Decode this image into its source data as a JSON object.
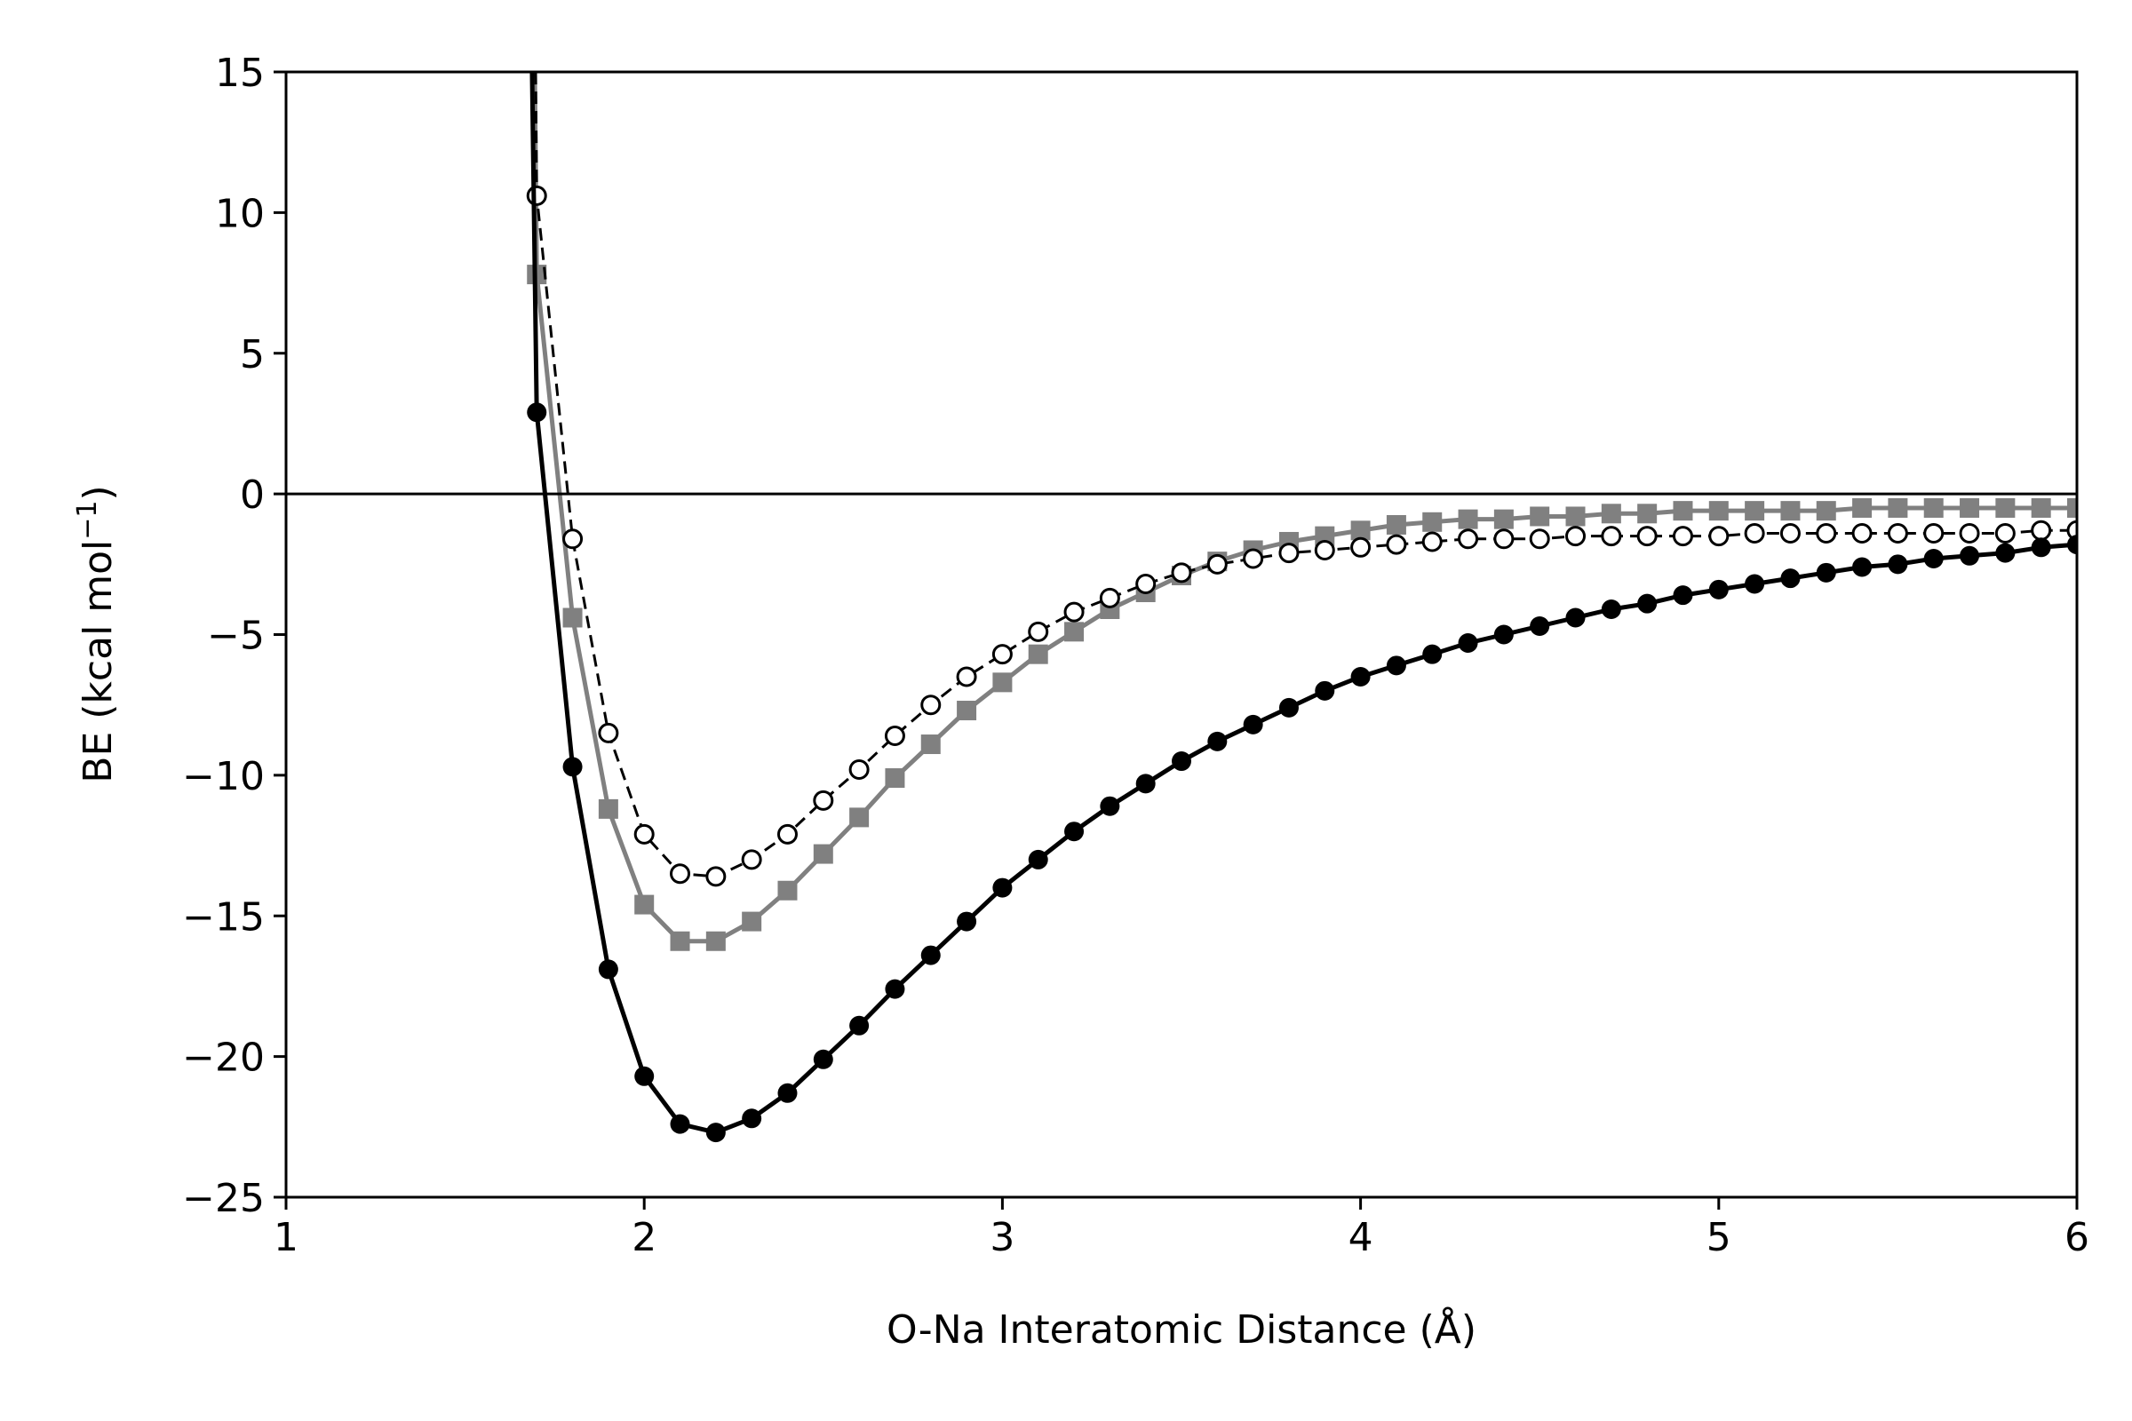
{
  "chart_data": {
    "type": "line",
    "xlabel": "O-Na Interatomic Distance (Å)",
    "ylabel": {
      "prefix": "BE (kcal mol",
      "sup": "−1",
      "suffix": ")"
    },
    "xlim": [
      1,
      6
    ],
    "ylim": [
      -25,
      15
    ],
    "xticks": [
      1,
      2,
      3,
      4,
      5,
      6
    ],
    "xtick_labels": [
      "1",
      "2",
      "3",
      "4",
      "5",
      "6"
    ],
    "yticks": [
      -25,
      -20,
      -15,
      -10,
      -5,
      0,
      5,
      10,
      15
    ],
    "ytick_labels": [
      "−25",
      "−20",
      "−15",
      "−10",
      "−5",
      "0",
      "5",
      "10",
      "15"
    ],
    "reference_line_y": 0,
    "grid": false,
    "legend": "none",
    "series": [
      {
        "style": "black solid line with filled circles",
        "color": "#000000",
        "x": [
          1.7,
          1.8,
          1.9,
          2.0,
          2.1,
          2.2,
          2.3,
          2.4,
          2.5,
          2.6,
          2.7,
          2.8,
          2.9,
          3.0,
          3.1,
          3.2,
          3.3,
          3.4,
          3.5,
          3.6,
          3.7,
          3.8,
          3.9,
          4.0,
          4.1,
          4.2,
          4.3,
          4.4,
          4.5,
          4.6,
          4.7,
          4.8,
          4.9,
          5.0,
          5.1,
          5.2,
          5.3,
          5.4,
          5.5,
          5.6,
          5.7,
          5.8,
          5.9,
          6.0
        ],
        "y": [
          2.9,
          -9.7,
          -16.9,
          -20.7,
          -22.4,
          -22.7,
          -22.2,
          -21.3,
          -20.1,
          -18.9,
          -17.6,
          -16.4,
          -15.2,
          -14.0,
          -13.0,
          -12.0,
          -11.1,
          -10.3,
          -9.5,
          -8.8,
          -8.2,
          -7.6,
          -7.0,
          -6.5,
          -6.1,
          -5.7,
          -5.3,
          -5.0,
          -4.7,
          -4.4,
          -4.1,
          -3.9,
          -3.6,
          -3.4,
          -3.2,
          -3.0,
          -2.8,
          -2.6,
          -2.5,
          -2.3,
          -2.2,
          -2.1,
          -1.9,
          -1.8
        ]
      },
      {
        "style": "grey solid line with filled squares",
        "color": "#808080",
        "x": [
          1.7,
          1.8,
          1.9,
          2.0,
          2.1,
          2.2,
          2.3,
          2.4,
          2.5,
          2.6,
          2.7,
          2.8,
          2.9,
          3.0,
          3.1,
          3.2,
          3.3,
          3.4,
          3.5,
          3.6,
          3.7,
          3.8,
          3.9,
          4.0,
          4.1,
          4.2,
          4.3,
          4.4,
          4.5,
          4.6,
          4.7,
          4.8,
          4.9,
          5.0,
          5.1,
          5.2,
          5.3,
          5.4,
          5.5,
          5.6,
          5.7,
          5.8,
          5.9,
          6.0
        ],
        "y": [
          7.8,
          -4.4,
          -11.2,
          -14.6,
          -15.9,
          -15.9,
          -15.2,
          -14.1,
          -12.8,
          -11.5,
          -10.1,
          -8.9,
          -7.7,
          -6.7,
          -5.7,
          -4.9,
          -4.1,
          -3.5,
          -2.9,
          -2.4,
          -2.0,
          -1.7,
          -1.5,
          -1.3,
          -1.1,
          -1.0,
          -0.9,
          -0.9,
          -0.8,
          -0.8,
          -0.7,
          -0.7,
          -0.6,
          -0.6,
          -0.6,
          -0.6,
          -0.6,
          -0.5,
          -0.5,
          -0.5,
          -0.5,
          -0.5,
          -0.5,
          -0.5
        ]
      },
      {
        "style": "black dashed line with open circles",
        "color": "#000000",
        "x": [
          1.7,
          1.8,
          1.9,
          2.0,
          2.1,
          2.2,
          2.3,
          2.4,
          2.5,
          2.6,
          2.7,
          2.8,
          2.9,
          3.0,
          3.1,
          3.2,
          3.3,
          3.4,
          3.5,
          3.6,
          3.7,
          3.8,
          3.9,
          4.0,
          4.1,
          4.2,
          4.3,
          4.4,
          4.5,
          4.6,
          4.7,
          4.8,
          4.9,
          5.0,
          5.1,
          5.2,
          5.3,
          5.4,
          5.5,
          5.6,
          5.7,
          5.8,
          5.9,
          6.0
        ],
        "y": [
          10.6,
          -1.6,
          -8.5,
          -12.1,
          -13.5,
          -13.6,
          -13.0,
          -12.1,
          -10.9,
          -9.8,
          -8.6,
          -7.5,
          -6.5,
          -5.7,
          -4.9,
          -4.2,
          -3.7,
          -3.2,
          -2.8,
          -2.5,
          -2.3,
          -2.1,
          -2.0,
          -1.9,
          -1.8,
          -1.7,
          -1.6,
          -1.6,
          -1.6,
          -1.5,
          -1.5,
          -1.5,
          -1.5,
          -1.5,
          -1.4,
          -1.4,
          -1.4,
          -1.4,
          -1.4,
          -1.4,
          -1.4,
          -1.4,
          -1.3,
          -1.3
        ]
      }
    ]
  }
}
